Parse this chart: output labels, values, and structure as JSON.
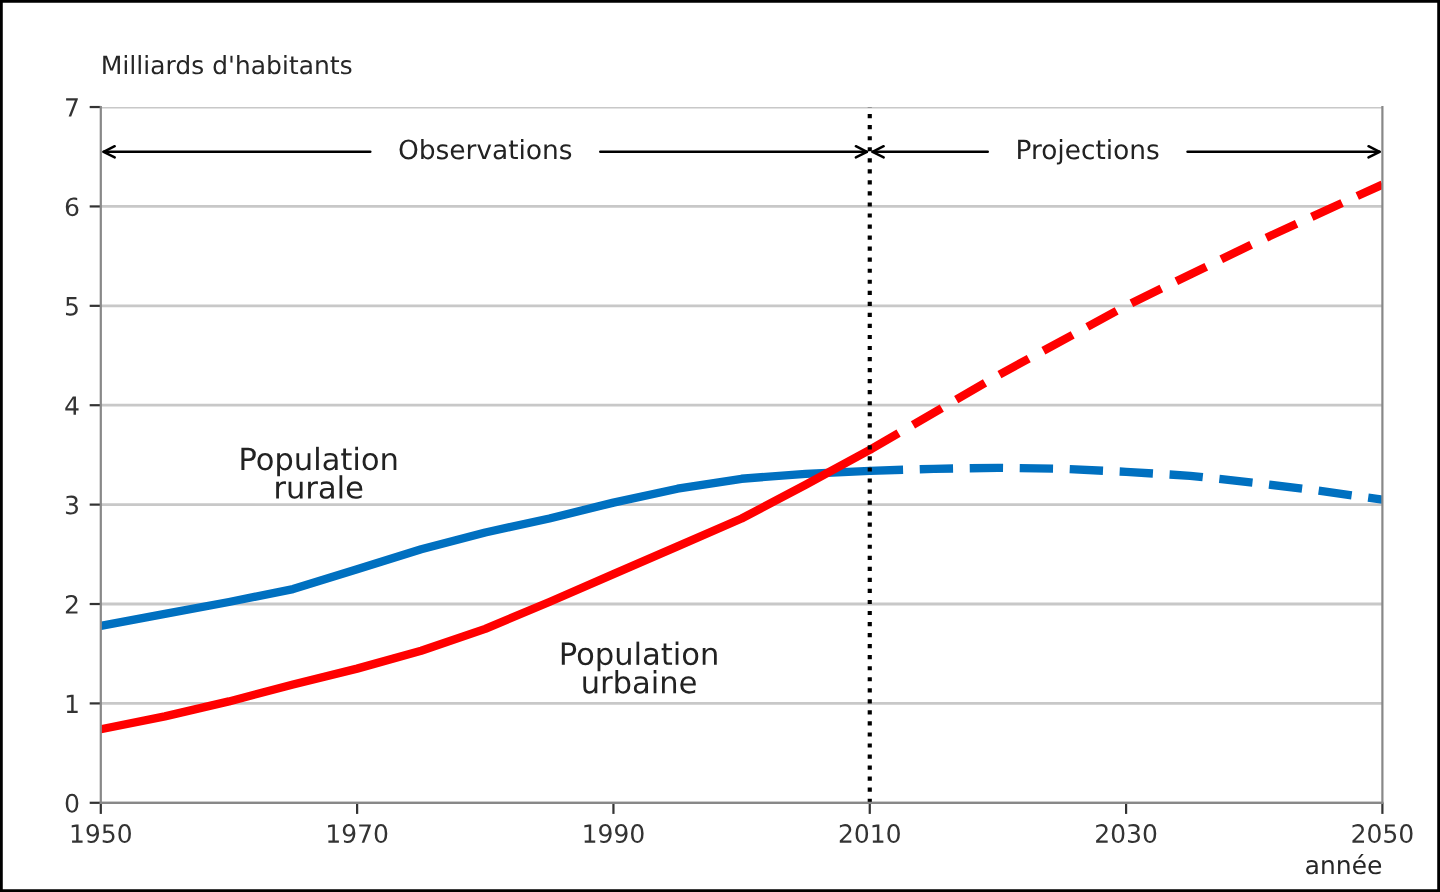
{
  "chart_data": {
    "type": "line",
    "ylabel": "Milliards d'habitants",
    "xlabel": "année",
    "series": [
      {
        "color": "#0070c0",
        "line_style": "solid",
        "x": [
          1950,
          1955,
          1960,
          1965,
          1970,
          1975,
          1980,
          1985,
          1990,
          1995,
          2000,
          2005,
          2010
        ],
        "values": [
          1.78,
          1.9,
          2.02,
          2.15,
          2.35,
          2.55,
          2.72,
          2.86,
          3.02,
          3.16,
          3.26,
          3.31,
          3.34
        ]
      },
      {
        "color": "#0070c0",
        "line_style": "dashed",
        "x": [
          2010,
          2015,
          2020,
          2025,
          2030,
          2035,
          2040,
          2045,
          2050
        ],
        "values": [
          3.34,
          3.36,
          3.37,
          3.36,
          3.33,
          3.29,
          3.22,
          3.14,
          3.05
        ]
      },
      {
        "color": "#ff0000",
        "line_style": "solid",
        "x": [
          1950,
          1955,
          1960,
          1965,
          1970,
          1975,
          1980,
          1985,
          1990,
          1995,
          2000,
          2005,
          2010
        ],
        "values": [
          0.74,
          0.87,
          1.02,
          1.19,
          1.35,
          1.53,
          1.75,
          2.02,
          2.3,
          2.58,
          2.86,
          3.2,
          3.55
        ]
      },
      {
        "color": "#ff0000",
        "line_style": "dashed",
        "x": [
          2010,
          2020,
          2030,
          2040,
          2050
        ],
        "values": [
          3.55,
          4.3,
          5.0,
          5.63,
          6.22
        ]
      }
    ],
    "xlim": [
      1950,
      2050
    ],
    "xticks": [
      1950,
      1970,
      1990,
      2010,
      2030,
      2050
    ],
    "ylim": [
      0,
      7
    ],
    "yticks": [
      0,
      1,
      2,
      3,
      4,
      5,
      6,
      7
    ],
    "grid": "y",
    "legend": false,
    "marker": "none",
    "ref_lines": [
      {
        "axis": "x",
        "value": 2010,
        "color": "#000000",
        "line_style": "dotted"
      }
    ],
    "annotations": [
      "Population\nrurale",
      "Population\nurbaine",
      {
        "text": "Observations",
        "x": 2010,
        "y": 6.55
      },
      {
        "text": "Projections",
        "x": 2010,
        "y": 6.55
      }
    ]
  }
}
